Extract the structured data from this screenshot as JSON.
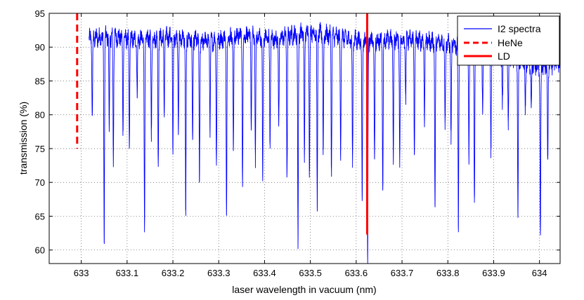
{
  "chart_data": {
    "type": "line",
    "xlabel": "laser wavelength in vacuum (nm)",
    "ylabel": "transmission (%)",
    "xlim": [
      632.93,
      634.045
    ],
    "ylim": [
      58,
      95
    ],
    "grid": true,
    "x_ticks": [
      "633",
      "633.1",
      "633.2",
      "633.3",
      "633.4",
      "633.5",
      "633.6",
      "633.7",
      "633.8",
      "633.9",
      "634"
    ],
    "y_ticks": [
      "60",
      "65",
      "70",
      "75",
      "80",
      "85",
      "90",
      "95"
    ],
    "legend": {
      "placement": "top-right"
    },
    "series": [
      {
        "name": "I2 spectra",
        "color": "#0000ff",
        "style": "solid",
        "x_range": [
          633.017,
          634.045
        ],
        "baseline": [
          [
            633.017,
            91.2
          ],
          [
            633.06,
            91.6
          ],
          [
            633.12,
            91.1
          ],
          [
            633.2,
            91.5
          ],
          [
            633.28,
            90.8
          ],
          [
            633.35,
            91.8
          ],
          [
            633.42,
            91.2
          ],
          [
            633.5,
            92.3
          ],
          [
            633.56,
            91.5
          ],
          [
            633.62,
            90.8
          ],
          [
            633.7,
            91.2
          ],
          [
            633.8,
            90.6
          ],
          [
            633.88,
            89.2
          ],
          [
            633.95,
            88.2
          ],
          [
            634.0,
            87.0
          ],
          [
            634.045,
            87.8
          ]
        ],
        "absorption_dips": [
          [
            633.024,
            79
          ],
          [
            633.05,
            61.5
          ],
          [
            633.061,
            78
          ],
          [
            633.07,
            73
          ],
          [
            633.091,
            78
          ],
          [
            633.105,
            75
          ],
          [
            633.122,
            83
          ],
          [
            633.138,
            62.5
          ],
          [
            633.153,
            77
          ],
          [
            633.168,
            73
          ],
          [
            633.181,
            80
          ],
          [
            633.2,
            74
          ],
          [
            633.212,
            78
          ],
          [
            633.228,
            64.5
          ],
          [
            633.243,
            75
          ],
          [
            633.258,
            70
          ],
          [
            633.281,
            78
          ],
          [
            633.295,
            73
          ],
          [
            633.317,
            66
          ],
          [
            633.332,
            75
          ],
          [
            633.352,
            69
          ],
          [
            633.371,
            78
          ],
          [
            633.38,
            73
          ],
          [
            633.396,
            70
          ],
          [
            633.412,
            75
          ],
          [
            633.431,
            78
          ],
          [
            633.449,
            71
          ],
          [
            633.473,
            60.5
          ],
          [
            633.487,
            73
          ],
          [
            633.498,
            71
          ],
          [
            633.515,
            66
          ],
          [
            633.528,
            74
          ],
          [
            633.546,
            72
          ],
          [
            633.566,
            74
          ],
          [
            633.592,
            72
          ],
          [
            633.613,
            67
          ],
          [
            633.625,
            58
          ],
          [
            633.64,
            72
          ],
          [
            633.658,
            69
          ],
          [
            633.681,
            73
          ],
          [
            633.695,
            72.5
          ],
          [
            633.708,
            82
          ],
          [
            633.727,
            74
          ],
          [
            633.749,
            79
          ],
          [
            633.772,
            65.5
          ],
          [
            633.794,
            78
          ],
          [
            633.807,
            76
          ],
          [
            633.823,
            63
          ],
          [
            633.846,
            74
          ],
          [
            633.858,
            66.5
          ],
          [
            633.876,
            80
          ],
          [
            633.894,
            75
          ],
          [
            633.919,
            81
          ],
          [
            633.932,
            78
          ],
          [
            633.953,
            64.5
          ],
          [
            633.969,
            80
          ],
          [
            633.982,
            81
          ],
          [
            634.002,
            61.5
          ],
          [
            634.018,
            72
          ]
        ]
      },
      {
        "name": "HeNe",
        "color": "#ff0000",
        "style": "dashed",
        "x": 632.991,
        "y_range": [
          75,
          95
        ]
      },
      {
        "name": "LD",
        "color": "#ff0000",
        "style": "solid",
        "x": 633.624,
        "y_range": [
          62.3,
          95
        ]
      }
    ]
  }
}
